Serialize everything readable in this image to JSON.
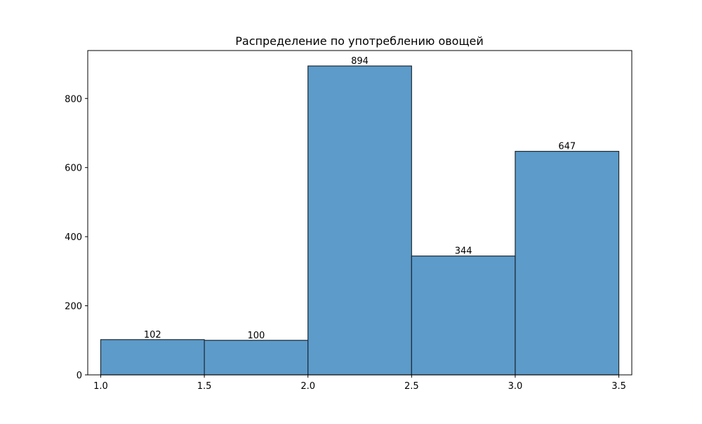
{
  "chart_data": {
    "type": "bar",
    "title": "Распределение по употреблению овощей",
    "xlabel": "",
    "ylabel": "",
    "bins": [
      {
        "start": 1.0,
        "end": 1.5,
        "value": 102,
        "label": "102"
      },
      {
        "start": 1.5,
        "end": 2.0,
        "value": 100,
        "label": "100"
      },
      {
        "start": 2.0,
        "end": 2.5,
        "value": 894,
        "label": "894"
      },
      {
        "start": 2.5,
        "end": 3.0,
        "value": 344,
        "label": "344"
      },
      {
        "start": 3.0,
        "end": 3.5,
        "value": 647,
        "label": "647"
      }
    ],
    "xlim": [
      0.9375,
      3.5625
    ],
    "ylim": [
      0,
      938.7
    ],
    "xticks": [
      1.0,
      1.5,
      2.0,
      2.5,
      3.0,
      3.5
    ],
    "xtick_labels": [
      "1.0",
      "1.5",
      "2.0",
      "2.5",
      "3.0",
      "3.5"
    ],
    "yticks": [
      0,
      200,
      400,
      600,
      800
    ],
    "ytick_labels": [
      "0",
      "200",
      "400",
      "600",
      "800"
    ],
    "grid": false,
    "bar_color": "#4a90c4",
    "bar_edge_color": "#1f2a33"
  }
}
